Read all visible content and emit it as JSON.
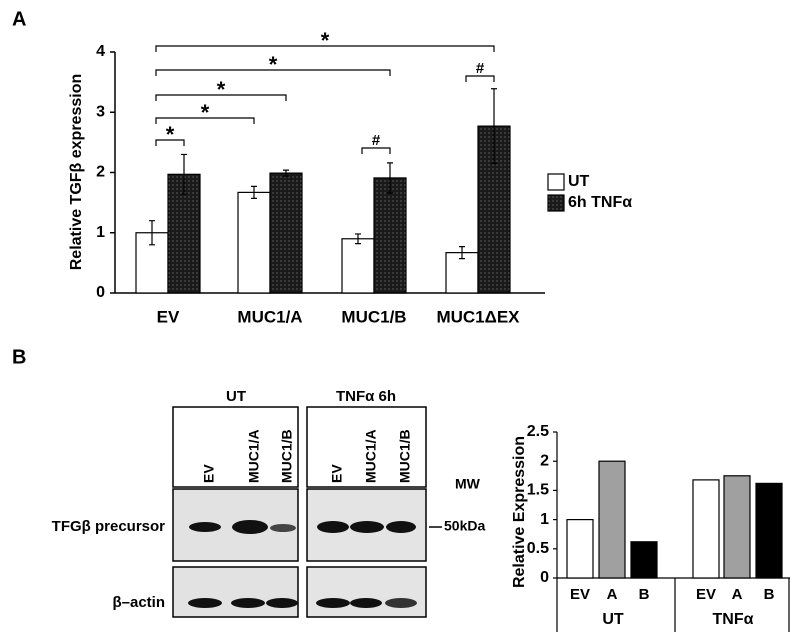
{
  "panel_labels": [
    "A",
    "B"
  ],
  "chart_data": [
    {
      "type": "bar",
      "y_label": "Relative TGFβ expression",
      "categories": [
        "EV",
        "MUC1/A",
        "MUC1/B",
        "MUC1ΔEX"
      ],
      "series": [
        {
          "name": "UT",
          "color": "#ffffff",
          "values": [
            1.0,
            1.67,
            0.9,
            0.67
          ],
          "errors": [
            0.2,
            0.1,
            0.08,
            0.1
          ]
        },
        {
          "name": "6h TNFα",
          "color": "#1a1a1a",
          "values": [
            1.97,
            1.99,
            1.91,
            2.77
          ],
          "errors": [
            0.33,
            0.05,
            0.25,
            0.62
          ]
        }
      ],
      "ylim": [
        0,
        4
      ],
      "yticks": [
        0,
        1,
        2,
        3,
        4
      ],
      "annotations": [
        "*",
        "*",
        "*",
        "*",
        "*",
        "#",
        "#"
      ]
    },
    {
      "type": "bar",
      "y_label": "Relative Expression",
      "categories": [
        "EV",
        "A",
        "B",
        "EV",
        "A",
        "B"
      ],
      "groups": [
        "UT",
        "TNFα"
      ],
      "values": [
        1.0,
        2.0,
        0.62,
        1.68,
        1.75,
        1.62
      ],
      "colors": [
        "#ffffff",
        "#a0a0a0",
        "#000000",
        "#ffffff",
        "#a0a0a0",
        "#000000"
      ],
      "ylim": [
        0,
        2.5
      ],
      "yticks": [
        0,
        0.5,
        1,
        1.5,
        2,
        2.5
      ]
    }
  ],
  "blot": {
    "groups": [
      "UT",
      "TNFα 6h"
    ],
    "lanes": [
      "EV",
      "MUC1/A",
      "MUC1/B",
      "EV",
      "MUC1/A",
      "MUC1/B"
    ],
    "mw_header": "MW",
    "marker": "50kDa",
    "rows": [
      "TFGβ precursor",
      "β–actin"
    ]
  }
}
